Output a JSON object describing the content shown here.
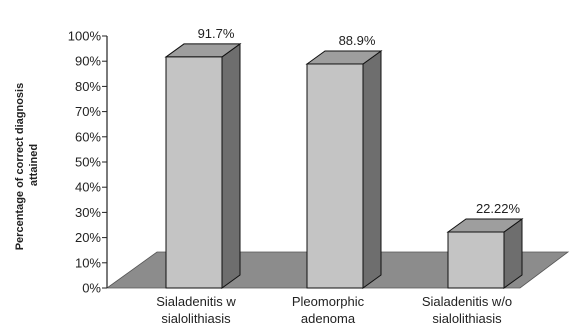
{
  "chart_data": {
    "type": "bar",
    "categories": [
      [
        "Sialadenitis w",
        "sialolithiasis"
      ],
      [
        "Pleomorphic",
        "adenoma"
      ],
      [
        "Sialadenitis w/o",
        "sialolithiasis"
      ]
    ],
    "values": [
      91.7,
      88.9,
      22.22
    ],
    "data_labels": [
      "91.7%",
      "88.9%",
      "22.22%"
    ],
    "ylabel": [
      "Percentage of correct diagnosis",
      "attained"
    ],
    "ylim": [
      0,
      100
    ],
    "yticks": [
      0,
      10,
      20,
      30,
      40,
      50,
      60,
      70,
      80,
      90,
      100
    ],
    "ytick_labels": [
      "0%",
      "10%",
      "20%",
      "30%",
      "40%",
      "50%",
      "60%",
      "70%",
      "80%",
      "90%",
      "100%"
    ],
    "grid": false,
    "style": "3d-column",
    "colors": {
      "bar_front": "#c4c4c4",
      "bar_side": "#6e6e6e",
      "bar_top": "#9e9e9e",
      "floor": "#8c8c8c",
      "axis": "#222222",
      "outline": "#111111"
    }
  }
}
